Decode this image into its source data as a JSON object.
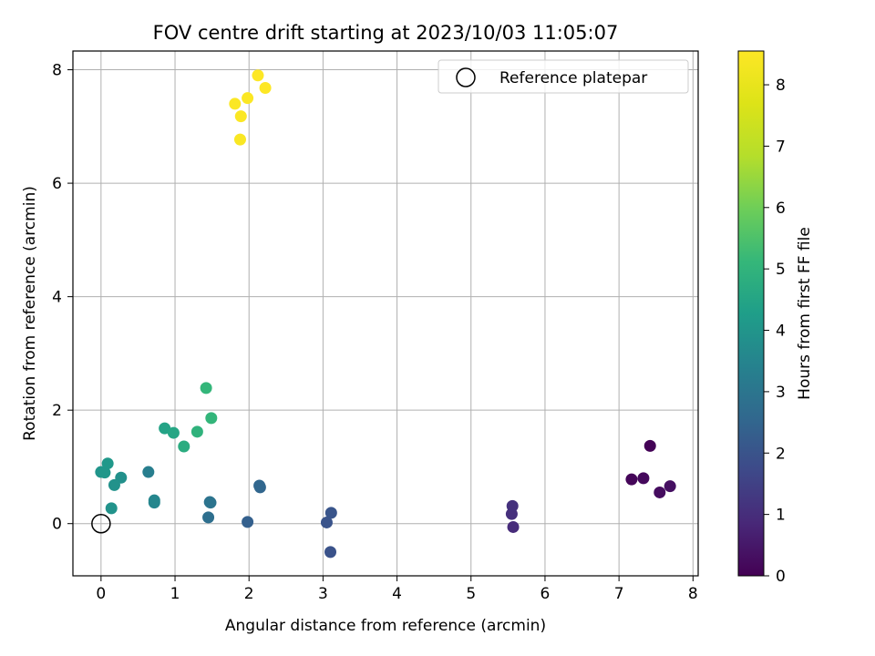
{
  "chart_data": {
    "type": "scatter",
    "title": "FOV centre drift starting at 2023/10/03 11:05:07",
    "xlabel": "Angular distance from reference (arcmin)",
    "ylabel": "Rotation from reference (arcmin)",
    "xlim": [
      -0.38,
      8.07
    ],
    "ylim": [
      -0.92,
      8.33
    ],
    "xticks": [
      0,
      1,
      2,
      3,
      4,
      5,
      6,
      7,
      8
    ],
    "yticks": [
      0,
      2,
      4,
      6,
      8
    ],
    "grid": true,
    "legend": {
      "placement": "top-right",
      "entries": [
        "Reference platepar"
      ]
    },
    "reference_point": {
      "x": 0,
      "y": 0
    },
    "colorbar": {
      "label": "Hours from first FF file",
      "colormap": "viridis",
      "range": [
        0,
        8.55
      ],
      "ticks": [
        0,
        1,
        2,
        3,
        4,
        5,
        6,
        7,
        8
      ]
    },
    "points": [
      {
        "x": 7.42,
        "y": 1.37,
        "hours": 0.05
      },
      {
        "x": 7.17,
        "y": 0.78,
        "hours": 0.12
      },
      {
        "x": 7.33,
        "y": 0.8,
        "hours": 0.18
      },
      {
        "x": 7.55,
        "y": 0.55,
        "hours": 0.25
      },
      {
        "x": 7.69,
        "y": 0.66,
        "hours": 0.3
      },
      {
        "x": 5.57,
        "y": -0.06,
        "hours": 0.95
      },
      {
        "x": 5.55,
        "y": 0.17,
        "hours": 1.05
      },
      {
        "x": 5.56,
        "y": 0.31,
        "hours": 1.1
      },
      {
        "x": 3.1,
        "y": -0.5,
        "hours": 1.95
      },
      {
        "x": 3.05,
        "y": 0.02,
        "hours": 2.0
      },
      {
        "x": 3.11,
        "y": 0.19,
        "hours": 2.05
      },
      {
        "x": 1.98,
        "y": 0.03,
        "hours": 2.35
      },
      {
        "x": 2.15,
        "y": 0.64,
        "hours": 2.5
      },
      {
        "x": 2.14,
        "y": 0.67,
        "hours": 2.55
      },
      {
        "x": 1.45,
        "y": 0.11,
        "hours": 2.8
      },
      {
        "x": 1.47,
        "y": 0.38,
        "hours": 2.9
      },
      {
        "x": 1.48,
        "y": 0.37,
        "hours": 2.95
      },
      {
        "x": 0.64,
        "y": 0.91,
        "hours": 3.3
      },
      {
        "x": 0.72,
        "y": 0.37,
        "hours": 3.5
      },
      {
        "x": 0.72,
        "y": 0.41,
        "hours": 3.55
      },
      {
        "x": 0.27,
        "y": 0.81,
        "hours": 3.85
      },
      {
        "x": 0.18,
        "y": 0.68,
        "hours": 3.9
      },
      {
        "x": 0.14,
        "y": 0.27,
        "hours": 3.95
      },
      {
        "x": 0.0,
        "y": 0.91,
        "hours": 4.0
      },
      {
        "x": 0.05,
        "y": 0.9,
        "hours": 4.05
      },
      {
        "x": 0.09,
        "y": 1.06,
        "hours": 4.1
      },
      {
        "x": 0.86,
        "y": 1.68,
        "hours": 4.45
      },
      {
        "x": 0.98,
        "y": 1.6,
        "hours": 4.55
      },
      {
        "x": 1.12,
        "y": 1.36,
        "hours": 4.75
      },
      {
        "x": 1.3,
        "y": 1.62,
        "hours": 4.95
      },
      {
        "x": 1.49,
        "y": 1.86,
        "hours": 5.05
      },
      {
        "x": 1.42,
        "y": 2.39,
        "hours": 5.1
      },
      {
        "x": 1.88,
        "y": 6.77,
        "hours": 8.45
      },
      {
        "x": 1.89,
        "y": 7.18,
        "hours": 8.5
      },
      {
        "x": 1.81,
        "y": 7.4,
        "hours": 8.5
      },
      {
        "x": 1.98,
        "y": 7.5,
        "hours": 8.5
      },
      {
        "x": 2.12,
        "y": 7.9,
        "hours": 8.55
      },
      {
        "x": 2.22,
        "y": 7.68,
        "hours": 8.55
      }
    ]
  }
}
